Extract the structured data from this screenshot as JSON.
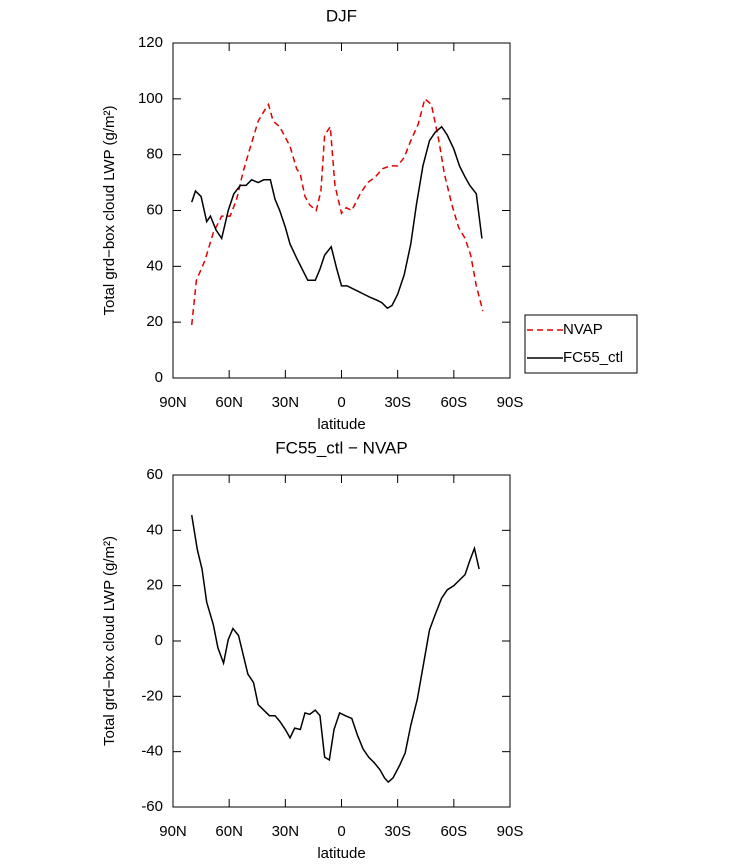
{
  "chart_data": [
    {
      "type": "line",
      "title": "DJF",
      "x_label": "latitude",
      "y_label": "Total grd−box cloud LWP (g/m²)",
      "xlim": [
        90,
        -90
      ],
      "xticks": [
        {
          "value": 90,
          "label": "90N"
        },
        {
          "value": 60,
          "label": "60N"
        },
        {
          "value": 30,
          "label": "30N"
        },
        0,
        {
          "value": -30,
          "label": "30S"
        },
        {
          "value": -60,
          "label": "60S"
        },
        {
          "value": -90,
          "label": "90S"
        }
      ],
      "ylim": [
        0,
        120
      ],
      "yticks": [
        0,
        20,
        40,
        60,
        80,
        100,
        120
      ],
      "legend": "right",
      "series": [
        {
          "name": "NVAP",
          "color": "#e00000",
          "style": "dashed",
          "x": [
            80,
            77.5,
            73,
            68.5,
            64,
            59.5,
            56,
            52.5,
            49,
            44.5,
            41,
            39,
            36.5,
            33,
            27.5,
            24,
            22,
            19.5,
            17,
            13.5,
            11,
            9,
            6,
            3.5,
            0,
            -2.5,
            -5.5,
            -10,
            -14,
            -18,
            -22,
            -26,
            -30,
            -33.5,
            -37,
            -41,
            -44.5,
            -48,
            -52,
            -55,
            -59,
            -62.5,
            -66,
            -69,
            -72,
            -75.5
          ],
          "values": [
            19,
            35,
            42,
            52,
            58,
            58,
            64,
            74,
            82,
            92,
            96,
            98,
            92,
            90,
            83,
            75,
            73,
            65,
            62,
            60,
            67,
            87,
            90,
            69,
            59,
            61,
            60,
            66,
            70,
            72,
            75,
            76,
            76,
            79,
            85,
            91,
            100,
            98,
            85,
            73,
            62,
            54,
            50,
            44,
            33,
            24
          ]
        },
        {
          "name": "FC55_ctl",
          "color": "#000000",
          "style": "solid",
          "x": [
            80,
            78,
            75,
            72,
            70,
            67,
            64,
            60.5,
            57.5,
            54,
            51,
            48,
            44.5,
            41.5,
            38,
            35.5,
            33,
            30,
            27.5,
            24,
            21,
            18,
            14,
            11.5,
            9,
            5.5,
            2.5,
            0,
            -3,
            -6,
            -9,
            -12,
            -15,
            -18.5,
            -21.5,
            -24.5,
            -27,
            -30,
            -33.5,
            -37,
            -40,
            -43.5,
            -47,
            -50,
            -53.5,
            -56.5,
            -60,
            -63,
            -66,
            -68.5,
            -72,
            -75
          ],
          "values": [
            63,
            67,
            65,
            56,
            58,
            53,
            50,
            60,
            66,
            69,
            69,
            71,
            70,
            71,
            71,
            64,
            60,
            54,
            48,
            43,
            39,
            35,
            35,
            39,
            44,
            47,
            39,
            33,
            33,
            32,
            31,
            30,
            29,
            28,
            27,
            25,
            26,
            30,
            37,
            48,
            62,
            76,
            85,
            88,
            90,
            87,
            82,
            76,
            72,
            69,
            66,
            50
          ]
        }
      ]
    },
    {
      "type": "line",
      "title": "FC55_ctl − NVAP",
      "x_label": "latitude",
      "y_label": "Total grd−box cloud LWP (g/m²)",
      "xlim": [
        90,
        -90
      ],
      "xticks": [
        {
          "value": 90,
          "label": "90N"
        },
        {
          "value": 60,
          "label": "60N"
        },
        {
          "value": 30,
          "label": "30N"
        },
        0,
        {
          "value": -30,
          "label": "30S"
        },
        {
          "value": -60,
          "label": "60S"
        },
        {
          "value": -90,
          "label": "90S"
        }
      ],
      "ylim": [
        -60,
        60
      ],
      "yticks": [
        -60,
        -40,
        -20,
        0,
        20,
        40,
        60
      ],
      "series": [
        {
          "color": "#000000",
          "style": "solid",
          "x": [
            80,
            77,
            74.5,
            72,
            68.5,
            66,
            63,
            60.5,
            58,
            55,
            52.5,
            50,
            47,
            44.5,
            41.5,
            38.5,
            35.5,
            33,
            30,
            27.5,
            25,
            22,
            19.5,
            17,
            14,
            11.5,
            9,
            6.5,
            4,
            1,
            -2,
            -5.5,
            -8.5,
            -11.5,
            -14.5,
            -17.5,
            -20.5,
            -23,
            -25,
            -27.5,
            -31,
            -34,
            -37,
            -40.5,
            -43.5,
            -47,
            -50,
            -53.5,
            -56.5,
            -60,
            -63,
            -66,
            -68.5,
            -71,
            -73.5
          ],
          "values": [
            45.5,
            33,
            26,
            14,
            6,
            -2.5,
            -8,
            0.5,
            4.5,
            2,
            -5,
            -12,
            -15,
            -23,
            -25,
            -27,
            -27,
            -29,
            -32,
            -35,
            -31.5,
            -32,
            -26,
            -26.5,
            -25,
            -27,
            -42,
            -43,
            -32,
            -26,
            -27,
            -28,
            -34,
            -39,
            -42,
            -44,
            -46.5,
            -49.5,
            -51,
            -49.5,
            -45,
            -40.5,
            -30.5,
            -21,
            -9.5,
            4,
            9.5,
            15.5,
            18.5,
            20,
            22,
            24,
            29,
            33.5,
            26
          ]
        }
      ]
    }
  ]
}
